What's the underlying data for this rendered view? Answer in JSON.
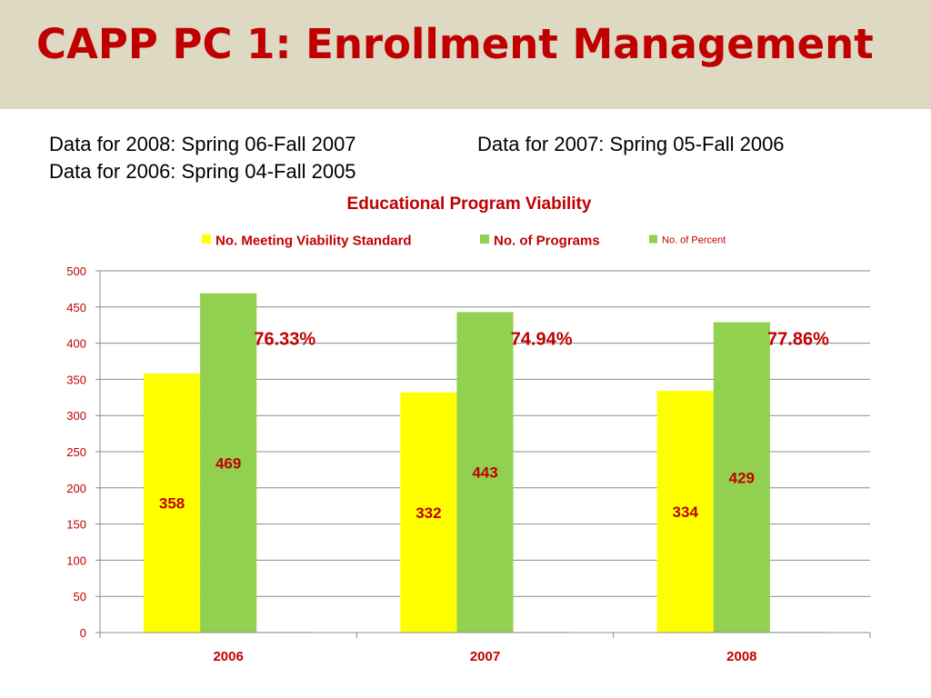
{
  "slide": {
    "title": "CAPP PC 1: Enrollment Management",
    "notes": [
      "Data for 2008: Spring 06-Fall 2007",
      "Data for 2007: Spring 05-Fall 2006",
      "Data for 2006: Spring 04-Fall 2005"
    ]
  },
  "colors": {
    "title": "#c00000",
    "band": "#ddd9c3",
    "labels": "#c00000",
    "series": [
      "#ffff00",
      "#92d050",
      "#92d050"
    ]
  },
  "chart_data": {
    "type": "bar",
    "title": "Educational Program Viability",
    "categories": [
      "2006",
      "2007",
      "2008"
    ],
    "series": [
      {
        "name": "No. Meeting Viability Standard",
        "values": [
          358,
          332,
          334
        ],
        "data_labels": [
          "358",
          "332",
          "334"
        ]
      },
      {
        "name": "No. of  Programs",
        "values": [
          469,
          443,
          429
        ],
        "data_labels": [
          "469",
          "443",
          "429"
        ]
      },
      {
        "name": "No. of  Percent",
        "values": [
          0.7633,
          0.7494,
          0.7786
        ],
        "data_labels": [
          "76.33%",
          "74.94%",
          "77.86%"
        ]
      }
    ],
    "yticks": [
      "0",
      "50",
      "100",
      "150",
      "200",
      "250",
      "300",
      "350",
      "400",
      "450",
      "500"
    ],
    "ylim": [
      0,
      500
    ],
    "grid": true,
    "legend_position": "top"
  }
}
